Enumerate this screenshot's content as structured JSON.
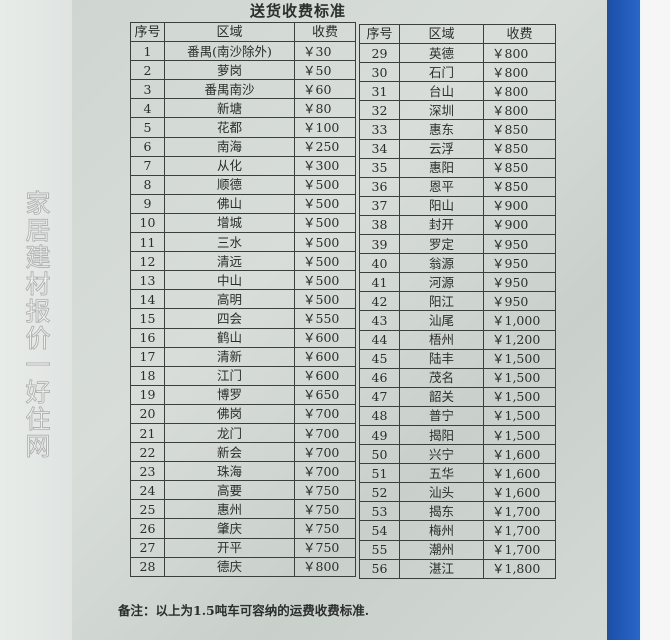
{
  "title": "送货收费标准",
  "headers": {
    "no": "序号",
    "area": "区域",
    "fee": "收费"
  },
  "rows_left": [
    {
      "no": "1",
      "area": "番禺(南沙除外)",
      "fee": "￥30"
    },
    {
      "no": "2",
      "area": "萝岗",
      "fee": "￥50"
    },
    {
      "no": "3",
      "area": "番禺南沙",
      "fee": "￥60"
    },
    {
      "no": "4",
      "area": "新塘",
      "fee": "￥80"
    },
    {
      "no": "5",
      "area": "花都",
      "fee": "￥100"
    },
    {
      "no": "6",
      "area": "南海",
      "fee": "￥250"
    },
    {
      "no": "7",
      "area": "从化",
      "fee": "￥300"
    },
    {
      "no": "8",
      "area": "顺德",
      "fee": "￥500"
    },
    {
      "no": "9",
      "area": "佛山",
      "fee": "￥500"
    },
    {
      "no": "10",
      "area": "增城",
      "fee": "￥500"
    },
    {
      "no": "11",
      "area": "三水",
      "fee": "￥500"
    },
    {
      "no": "12",
      "area": "清远",
      "fee": "￥500"
    },
    {
      "no": "13",
      "area": "中山",
      "fee": "￥500"
    },
    {
      "no": "14",
      "area": "高明",
      "fee": "￥500"
    },
    {
      "no": "15",
      "area": "四会",
      "fee": "￥550"
    },
    {
      "no": "16",
      "area": "鹤山",
      "fee": "￥600"
    },
    {
      "no": "17",
      "area": "清新",
      "fee": "￥600"
    },
    {
      "no": "18",
      "area": "江门",
      "fee": "￥600"
    },
    {
      "no": "19",
      "area": "博罗",
      "fee": "￥650"
    },
    {
      "no": "20",
      "area": "佛岗",
      "fee": "￥700"
    },
    {
      "no": "21",
      "area": "龙门",
      "fee": "￥700"
    },
    {
      "no": "22",
      "area": "新会",
      "fee": "￥700"
    },
    {
      "no": "23",
      "area": "珠海",
      "fee": "￥700"
    },
    {
      "no": "24",
      "area": "高要",
      "fee": "￥750"
    },
    {
      "no": "25",
      "area": "惠州",
      "fee": "￥750"
    },
    {
      "no": "26",
      "area": "肇庆",
      "fee": "￥750"
    },
    {
      "no": "27",
      "area": "开平",
      "fee": "￥750"
    },
    {
      "no": "28",
      "area": "德庆",
      "fee": "￥800"
    }
  ],
  "rows_right": [
    {
      "no": "29",
      "area": "英德",
      "fee": "￥800"
    },
    {
      "no": "30",
      "area": "石门",
      "fee": "￥800"
    },
    {
      "no": "31",
      "area": "台山",
      "fee": "￥800"
    },
    {
      "no": "32",
      "area": "深圳",
      "fee": "￥800"
    },
    {
      "no": "33",
      "area": "惠东",
      "fee": "￥850"
    },
    {
      "no": "34",
      "area": "云浮",
      "fee": "￥850"
    },
    {
      "no": "35",
      "area": "惠阳",
      "fee": "￥850"
    },
    {
      "no": "36",
      "area": "恩平",
      "fee": "￥850"
    },
    {
      "no": "37",
      "area": "阳山",
      "fee": "￥900"
    },
    {
      "no": "38",
      "area": "封开",
      "fee": "￥900"
    },
    {
      "no": "39",
      "area": "罗定",
      "fee": "￥950"
    },
    {
      "no": "40",
      "area": "翁源",
      "fee": "￥950"
    },
    {
      "no": "41",
      "area": "河源",
      "fee": "￥950"
    },
    {
      "no": "42",
      "area": "阳江",
      "fee": "￥950"
    },
    {
      "no": "43",
      "area": "汕尾",
      "fee": "￥1,000"
    },
    {
      "no": "44",
      "area": "梧州",
      "fee": "￥1,200"
    },
    {
      "no": "45",
      "area": "陆丰",
      "fee": "￥1,500"
    },
    {
      "no": "46",
      "area": "茂名",
      "fee": "￥1,500"
    },
    {
      "no": "47",
      "area": "韶关",
      "fee": "￥1,500"
    },
    {
      "no": "48",
      "area": "普宁",
      "fee": "￥1,500"
    },
    {
      "no": "49",
      "area": "揭阳",
      "fee": "￥1,500"
    },
    {
      "no": "50",
      "area": "兴宁",
      "fee": "￥1,600"
    },
    {
      "no": "51",
      "area": "五华",
      "fee": "￥1,600"
    },
    {
      "no": "52",
      "area": "汕头",
      "fee": "￥1,600"
    },
    {
      "no": "53",
      "area": "揭东",
      "fee": "￥1,700"
    },
    {
      "no": "54",
      "area": "梅州",
      "fee": "￥1,700"
    },
    {
      "no": "55",
      "area": "潮州",
      "fee": "￥1,700"
    },
    {
      "no": "56",
      "area": "湛江",
      "fee": "￥1,800"
    }
  ],
  "note": "备注：以上为1.5吨车可容纳的运费收费标准.",
  "watermark": "家居建材报价一好住网",
  "colors": {
    "paper": "#d3d9d5",
    "ink": "#2a2e2d",
    "blue_strip": "#1b4fa8"
  }
}
